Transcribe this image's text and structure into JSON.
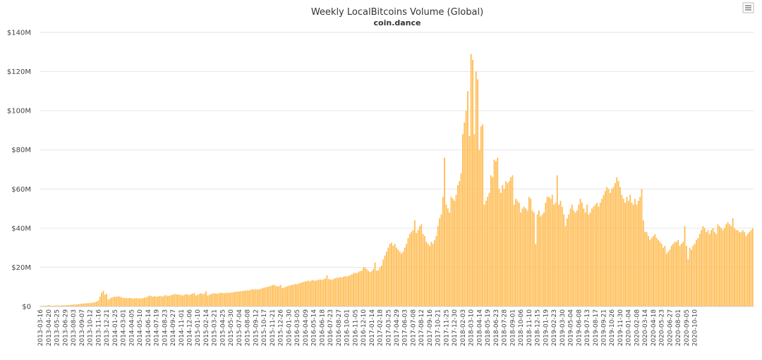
{
  "chart_data": {
    "type": "bar",
    "title": "Weekly LocalBitcoins Volume (Global)",
    "subtitle": "coin.dance",
    "xlabel": "",
    "ylabel": "",
    "ylim": [
      0,
      140
    ],
    "y_unit": "M USD",
    "y_tick_labels": [
      "$0",
      "$20M",
      "$40M",
      "$60M",
      "$80M",
      "$100M",
      "$120M",
      "$140M"
    ],
    "grid": true,
    "legend": "none",
    "color": "#ffbd55",
    "x_tick_labels": [
      "2013-03-16",
      "2013-04-20",
      "2013-05-25",
      "2013-06-29",
      "2013-08-03",
      "2013-09-07",
      "2013-10-12",
      "2013-11-16",
      "2013-12-21",
      "2014-01-25",
      "2014-03-01",
      "2014-04-05",
      "2014-05-10",
      "2014-06-14",
      "2014-07-19",
      "2014-08-23",
      "2014-09-27",
      "2014-11-01",
      "2014-12-06",
      "2015-01-10",
      "2015-02-14",
      "2015-03-21",
      "2015-04-25",
      "2015-05-30",
      "2015-07-04",
      "2015-08-08",
      "2015-09-12",
      "2015-10-17",
      "2015-11-21",
      "2015-12-26",
      "2016-01-30",
      "2016-03-05",
      "2016-04-09",
      "2016-05-14",
      "2016-06-18",
      "2016-07-23",
      "2016-08-27",
      "2016-10-01",
      "2016-11-05",
      "2016-12-10",
      "2017-01-14",
      "2017-02-18",
      "2017-03-25",
      "2017-04-29",
      "2017-06-03",
      "2017-07-08",
      "2017-08-12",
      "2017-09-16",
      "2017-10-21",
      "2017-11-25",
      "2017-12-30",
      "2018-02-03",
      "2018-03-10",
      "2018-04-14",
      "2018-05-19",
      "2018-06-23",
      "2018-07-28",
      "2018-09-01",
      "2018-10-06",
      "2018-11-10",
      "2018-12-15",
      "2019-01-19",
      "2019-02-23",
      "2019-03-30",
      "2019-05-04",
      "2019-06-08",
      "2019-07-13",
      "2019-08-17",
      "2019-09-21",
      "2019-10-26",
      "2019-11-30",
      "2020-01-04",
      "2020-02-08",
      "2020-03-14",
      "2020-04-18",
      "2020-05-23",
      "2020-06-27",
      "2020-08-01",
      "2020-09-05",
      "2020-10-10"
    ],
    "values": [
      0.3,
      0.3,
      0.4,
      0.4,
      0.5,
      0.7,
      0.5,
      0.4,
      0.4,
      0.5,
      0.4,
      0.5,
      0.5,
      0.6,
      0.6,
      0.6,
      0.7,
      0.7,
      0.8,
      0.9,
      1.0,
      1.0,
      1.1,
      1.2,
      1.3,
      1.4,
      1.5,
      1.6,
      1.6,
      1.7,
      1.7,
      1.8,
      2.0,
      2.2,
      2.5,
      3.0,
      5.0,
      7.0,
      8.0,
      6.0,
      6.5,
      3.5,
      4.0,
      4.5,
      4.8,
      5.0,
      4.9,
      5.2,
      5.0,
      4.6,
      4.4,
      4.3,
      4.2,
      4.3,
      4.4,
      4.2,
      4.0,
      4.1,
      4.3,
      4.0,
      4.2,
      4.0,
      4.3,
      4.5,
      4.6,
      5.2,
      5.6,
      5.3,
      5.0,
      5.2,
      5.1,
      5.0,
      5.4,
      5.3,
      5.0,
      5.6,
      5.7,
      5.2,
      5.5,
      5.8,
      6.0,
      6.4,
      6.2,
      6.0,
      6.1,
      5.8,
      5.6,
      6.0,
      6.3,
      6.0,
      5.9,
      6.3,
      6.6,
      6.7,
      5.6,
      6.0,
      6.4,
      6.8,
      6.2,
      6.6,
      7.8,
      5.6,
      5.9,
      6.3,
      6.6,
      6.8,
      6.5,
      6.6,
      6.7,
      7.0,
      6.9,
      6.8,
      6.9,
      7.0,
      6.9,
      7.1,
      7.2,
      7.3,
      7.5,
      7.7,
      7.6,
      7.8,
      7.9,
      8.0,
      8.1,
      8.3,
      8.1,
      8.6,
      8.8,
      8.5,
      8.9,
      8.6,
      8.7,
      9.0,
      9.3,
      9.6,
      9.8,
      10.0,
      10.2,
      10.5,
      10.8,
      11.0,
      10.6,
      10.2,
      10.3,
      11.0,
      9.4,
      9.6,
      10.0,
      10.3,
      10.6,
      10.8,
      11.0,
      11.2,
      11.5,
      11.3,
      11.8,
      12.0,
      12.3,
      12.5,
      12.8,
      13.0,
      13.2,
      12.8,
      13.5,
      13.3,
      13.1,
      13.4,
      13.6,
      13.8,
      13.5,
      13.9,
      14.2,
      15.9,
      14.0,
      13.8,
      13.6,
      14.0,
      14.4,
      14.8,
      14.6,
      15.0,
      14.8,
      15.2,
      15.5,
      15.3,
      15.6,
      16.0,
      16.4,
      16.8,
      17.2,
      17.0,
      17.5,
      18.0,
      18.3,
      19.8,
      20.0,
      19.0,
      18.2,
      17.5,
      18.0,
      19.0,
      22.5,
      18.3,
      18.5,
      20.0,
      21.0,
      24.0,
      26.0,
      28.0,
      30.0,
      32.0,
      32.5,
      31.0,
      32.0,
      30.0,
      29.0,
      28.0,
      27.0,
      28.0,
      30.0,
      32.0,
      35.0,
      37.0,
      38.0,
      39.0,
      44.0,
      37.5,
      39.0,
      41.0,
      42.0,
      37.0,
      36.0,
      33.0,
      32.0,
      31.0,
      33.0,
      32.0,
      34.0,
      36.0,
      41.0,
      45.0,
      47.0,
      56.0,
      76.0,
      52.0,
      50.0,
      48.0,
      56.0,
      55.0,
      54.0,
      57.0,
      62.0,
      64.0,
      68.0,
      88.0,
      94.0,
      100.0,
      110.0,
      87.0,
      129.0,
      126.0,
      88.0,
      120.0,
      116.0,
      80.0,
      92.0,
      93.0,
      52.0,
      54.0,
      56.0,
      58.0,
      67.0,
      66.0,
      75.0,
      74.0,
      76.0,
      60.0,
      58.0,
      62.0,
      60.0,
      64.0,
      63.0,
      64.0,
      66.0,
      67.0,
      52.0,
      55.0,
      54.0,
      53.0,
      48.0,
      50.0,
      51.0,
      50.0,
      49.0,
      56.0,
      55.0,
      49.0,
      48.0,
      32.0,
      47.0,
      49.0,
      46.0,
      47.0,
      48.0,
      53.0,
      56.0,
      56.0,
      55.0,
      57.0,
      52.0,
      53.0,
      67.0,
      52.0,
      54.0,
      51.0,
      47.0,
      41.0,
      45.0,
      47.0,
      50.0,
      52.0,
      49.0,
      48.0,
      49.0,
      52.0,
      55.0,
      53.0,
      50.0,
      48.0,
      52.0,
      47.0,
      48.0,
      50.0,
      51.0,
      52.0,
      53.0,
      51.0,
      53.0,
      55.0,
      57.0,
      59.0,
      61.0,
      60.0,
      58.0,
      60.0,
      61.0,
      63.0,
      66.0,
      64.0,
      61.0,
      57.0,
      55.0,
      53.0,
      56.0,
      54.0,
      57.0,
      53.0,
      52.0,
      55.0,
      52.0,
      54.0,
      56.0,
      60.0,
      44.0,
      38.0,
      38.0,
      36.0,
      34.0,
      35.0,
      36.0,
      37.0,
      35.0,
      34.0,
      33.0,
      32.0,
      30.0,
      31.0,
      27.0,
      28.0,
      29.0,
      31.0,
      32.0,
      33.0,
      33.0,
      34.0,
      31.0,
      32.0,
      33.0,
      41.0,
      31.0,
      24.0,
      30.0,
      29.0,
      31.0,
      32.0,
      34.0,
      35.0,
      37.0,
      39.0,
      41.0,
      40.0,
      38.0,
      39.0,
      37.0,
      39.0,
      40.0,
      38.0,
      37.0,
      42.0,
      41.0,
      40.0,
      39.0,
      40.0,
      42.0,
      43.0,
      42.0,
      41.0,
      45.0,
      40.0,
      39.0,
      39.0,
      38.0,
      38.0,
      39.0,
      38.0,
      36.0,
      37.0,
      38.0,
      39.0,
      40.0
    ]
  },
  "menu": {
    "icon": "hamburger-menu-icon"
  }
}
